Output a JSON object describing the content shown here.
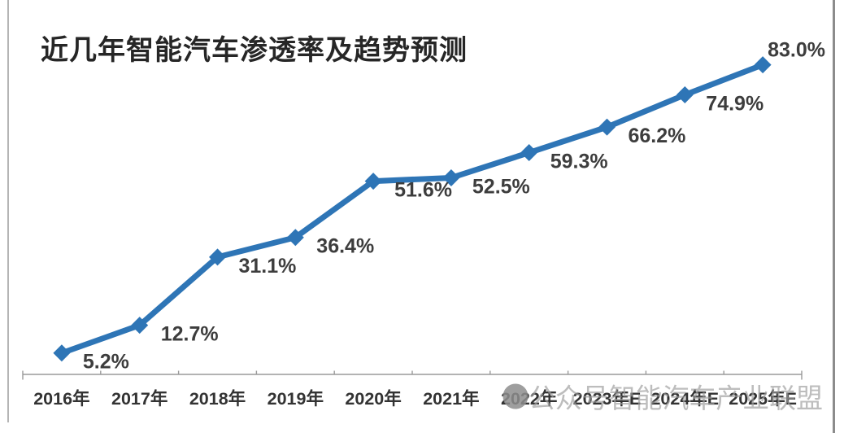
{
  "window": {
    "background": "#ffffff",
    "left_frame_color": "#b5b5b5",
    "right_frame_color": "#8c8c8c"
  },
  "chart_data": {
    "type": "line",
    "title": "近几年智能汽车渗透率及趋势预测",
    "title_color": "#262626",
    "categories": [
      "2016年",
      "2017年",
      "2018年",
      "2019年",
      "2020年",
      "2021年",
      "2022年",
      "2023年E",
      "2024年E",
      "2025年E"
    ],
    "values": [
      5.2,
      12.7,
      31.1,
      36.4,
      51.6,
      52.5,
      59.3,
      66.2,
      74.9,
      83.0
    ],
    "data_labels": [
      "5.2%",
      "12.7%",
      "31.1%",
      "36.4%",
      "51.6%",
      "52.5%",
      "59.3%",
      "66.2%",
      "74.9%",
      "83.0%"
    ],
    "xlabel": "",
    "ylabel": "",
    "ylim": [
      0,
      95
    ],
    "grid": false,
    "legend": "none",
    "y_axis_visible": false,
    "line_color": "#2E75B6",
    "marker": "diamond",
    "marker_color": "#2E75B6",
    "data_label_color": "#3d3d3d",
    "axis_color": "#9a9a9a",
    "tick_label_color": "#333333"
  },
  "watermark": {
    "icon": "chat-bubble-icon",
    "icon_color": "#8d8d8d",
    "text": "公众号智能汽车产业联盟",
    "text_color": "#9e9e9e"
  }
}
